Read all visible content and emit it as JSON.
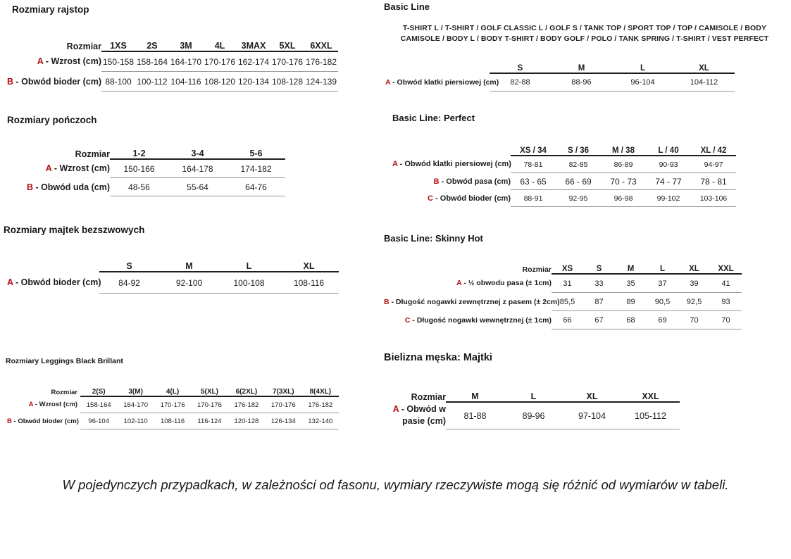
{
  "page": {
    "footnote": "W pojedynczych przypadkach, w zależności od fasonu, wymiary rzeczywiste mogą się różnić od wymiarów w tabeli.",
    "colors": {
      "accent_red": "#b01015",
      "rule_dark": "#1d1d1d",
      "rule_gray": "#999999",
      "text": "#1c1c1c"
    }
  },
  "sections": {
    "rajstop": {
      "title": "Rozmiary rajstop",
      "table": {
        "corner": "Rozmiar",
        "columns": [
          "1XS",
          "2S",
          "3M",
          "4L",
          "3MAX",
          "5XL",
          "6XXL"
        ],
        "rows": [
          {
            "letter": "A",
            "label": "- Wzrost (cm)",
            "values": [
              "150-158",
              "158-164",
              "164-170",
              "170-176",
              "162-174",
              "170-176",
              "176-182"
            ]
          },
          {
            "letter": "B",
            "label": "- Obwód bioder (cm)",
            "values": [
              "88-100",
              "100-112",
              "104-116",
              "108-120",
              "120-134",
              "108-128",
              "124-139"
            ]
          }
        ]
      }
    },
    "ponczochy": {
      "title": "Rozmiary pończoch",
      "table": {
        "corner": "Rozmiar",
        "columns": [
          "1-2",
          "3-4",
          "5-6"
        ],
        "rows": [
          {
            "letter": "A",
            "label": "- Wzrost (cm)",
            "values": [
              "150-166",
              "164-178",
              "174-182"
            ]
          },
          {
            "letter": "B",
            "label": "- Obwód uda (cm)",
            "values": [
              "48-56",
              "55-64",
              "64-76"
            ]
          }
        ]
      }
    },
    "majtki_bezszwowe": {
      "title": "Rozmiary majtek bezszwowych",
      "table": {
        "corner": "",
        "columns": [
          "S",
          "M",
          "L",
          "XL"
        ],
        "rows": [
          {
            "letter": "A",
            "label": "- Obwód bioder (cm)",
            "values": [
              "84-92",
              "92-100",
              "100-108",
              "108-116"
            ]
          }
        ]
      }
    },
    "leggings": {
      "title": "Rozmiary Leggings Black Brillant",
      "table": {
        "corner": "Rozmiar",
        "columns": [
          "2(S)",
          "3(M)",
          "4(L)",
          "5(XL)",
          "6(2XL)",
          "7(3XL)",
          "8(4XL)"
        ],
        "rows": [
          {
            "letter": "A",
            "label": "- Wzrost (cm)",
            "values": [
              "158-164",
              "164-170",
              "170-176",
              "170-176",
              "176-182",
              "170-176",
              "176-182"
            ]
          },
          {
            "letter": "B",
            "label": "- Obwód bioder (cm)",
            "values": [
              "96-104",
              "102-110",
              "108-116",
              "116-124",
              "120-128",
              "126-134",
              "132-140"
            ]
          }
        ]
      }
    },
    "basic_line": {
      "title": "Basic Line",
      "subtitle": "T-SHIRT L / T-SHIRT / GOLF CLASSIC L / GOLF S / TANK TOP / SPORT TOP / TOP / CAMISOLE / BODY CAMISOLE / BODY L / BODY T-SHIRT / BODY GOLF / POLO / TANK SPRING / T-SHIRT / VEST PERFECT",
      "table": {
        "corner": "",
        "columns": [
          "S",
          "M",
          "L",
          "XL"
        ],
        "rows": [
          {
            "letter": "A",
            "label": "- Obwód klatki piersiowej (cm)",
            "values": [
              "82-88",
              "88-96",
              "96-104",
              "104-112"
            ]
          }
        ]
      }
    },
    "basic_line_perfect": {
      "title": "Basic Line: Perfect",
      "table": {
        "corner": "",
        "columns": [
          "XS / 34",
          "S / 36",
          "M / 38",
          "L / 40",
          "XL / 42"
        ],
        "rows": [
          {
            "letter": "A",
            "label": "- Obwód klatki piersiowej (cm)",
            "values": [
              "78-81",
              "82-85",
              "86-89",
              "90-93",
              "94-97"
            ]
          },
          {
            "letter": "B",
            "label": "- Obwód pasa (cm)",
            "values": [
              "63 - 65",
              "66 - 69",
              "70 - 73",
              "74 - 77",
              "78 - 81"
            ]
          },
          {
            "letter": "C",
            "label": "- Obwód bioder (cm)",
            "values": [
              "88-91",
              "92-95",
              "96-98",
              "99-102",
              "103-106"
            ]
          }
        ]
      }
    },
    "skinny_hot": {
      "title": "Basic Line: Skinny Hot",
      "table": {
        "corner": "Rozmiar",
        "columns": [
          "XS",
          "S",
          "M",
          "L",
          "XL",
          "XXL"
        ],
        "rows": [
          {
            "letter": "A",
            "label": "- ½ obwodu pasa (± 1cm)",
            "values": [
              "31",
              "33",
              "35",
              "37",
              "39",
              "41"
            ]
          },
          {
            "letter": "B",
            "label": "- Długość nogawki zewnętrznej z pasem (± 2cm)",
            "values": [
              "85,5",
              "87",
              "89",
              "90,5",
              "92,5",
              "93"
            ]
          },
          {
            "letter": "C",
            "label": "- Długość nogawki wewnętrznej (± 1cm)",
            "values": [
              "66",
              "67",
              "68",
              "69",
              "70",
              "70"
            ]
          }
        ]
      }
    },
    "bielizna_meska": {
      "title": "Bielizna męska: Majtki",
      "table": {
        "corner": "Rozmiar",
        "columns": [
          "M",
          "L",
          "XL",
          "XXL"
        ],
        "rows": [
          {
            "letter": "A",
            "label": "- Obwód w pasie (cm)",
            "values": [
              "81-88",
              "89-96",
              "97-104",
              "105-112"
            ]
          }
        ]
      }
    }
  }
}
